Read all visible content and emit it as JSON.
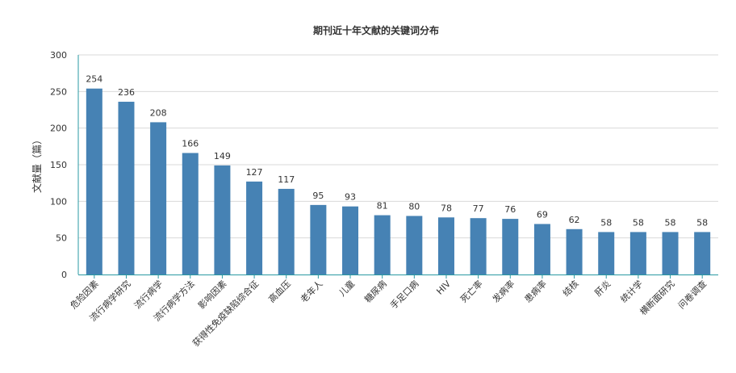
{
  "chart_data": {
    "type": "bar",
    "title": "期刊近十年文献的关键词分布",
    "xlabel": "",
    "ylabel": "文献量（篇）",
    "ylim": [
      0,
      300
    ],
    "yticks": [
      0,
      50,
      100,
      150,
      200,
      250,
      300
    ],
    "grid": true,
    "legend": "none",
    "bar_color": "#4682b4",
    "axis_color": "#2a9aa3",
    "categories": [
      "危险因素",
      "流行病学研究",
      "流行病学",
      "流行病学方法",
      "影响因素",
      "获得性免疫缺陷综合征",
      "高血压",
      "老年人",
      "儿童",
      "糖尿病",
      "手足口病",
      "HIV",
      "死亡率",
      "发病率",
      "患病率",
      "结核",
      "肝炎",
      "统计学",
      "横断面研究",
      "问卷调查"
    ],
    "values": [
      254,
      236,
      208,
      166,
      149,
      127,
      117,
      95,
      93,
      81,
      80,
      78,
      77,
      76,
      69,
      62,
      58,
      58,
      58,
      58
    ]
  }
}
